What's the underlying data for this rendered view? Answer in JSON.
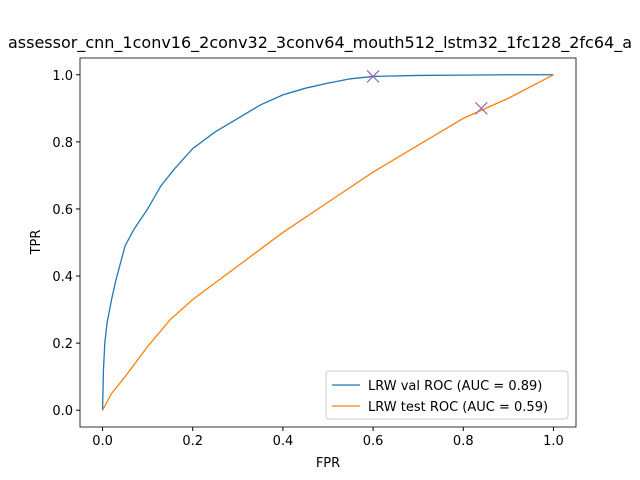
{
  "chart_data": {
    "type": "line",
    "title": "assessor_cnn_1conv16_2conv32_3conv64_mouth512_lstm32_1fc128_2fc64_a",
    "x_label": "FPR",
    "y_label": "TPR",
    "xlim": [
      -0.05,
      1.05
    ],
    "ylim": [
      -0.05,
      1.05
    ],
    "xticks": [
      {
        "value": 0,
        "label": "0.0"
      },
      {
        "value": 0.2,
        "label": "0.2"
      },
      {
        "value": 0.4,
        "label": "0.4"
      },
      {
        "value": 0.6,
        "label": "0.6"
      },
      {
        "value": 0.8,
        "label": "0.8"
      },
      {
        "value": 1,
        "label": "1.0"
      }
    ],
    "yticks": [
      {
        "value": 0,
        "label": "0.0"
      },
      {
        "value": 0.2,
        "label": "0.2"
      },
      {
        "value": 0.4,
        "label": "0.4"
      },
      {
        "value": 0.6,
        "label": "0.6"
      },
      {
        "value": 0.8,
        "label": "0.8"
      },
      {
        "value": 1,
        "label": "1.0"
      }
    ],
    "legend": "lower right",
    "series": [
      {
        "name": "LRW val ROC (AUC = 0.89)",
        "color": "#1f77b4",
        "x": [
          0,
          0.002,
          0.005,
          0.01,
          0.02,
          0.03,
          0.05,
          0.07,
          0.1,
          0.13,
          0.16,
          0.2,
          0.25,
          0.3,
          0.35,
          0.4,
          0.45,
          0.5,
          0.55,
          0.6,
          0.7,
          0.8,
          0.9,
          1.0
        ],
        "values": [
          0,
          0.12,
          0.2,
          0.26,
          0.33,
          0.39,
          0.49,
          0.54,
          0.6,
          0.67,
          0.72,
          0.78,
          0.83,
          0.87,
          0.91,
          0.94,
          0.96,
          0.975,
          0.988,
          0.995,
          0.998,
          0.999,
          1,
          1
        ]
      },
      {
        "name": "LRW test ROC (AUC = 0.59)",
        "color": "#ff7f0e",
        "x": [
          0,
          0.02,
          0.05,
          0.1,
          0.15,
          0.2,
          0.3,
          0.4,
          0.5,
          0.6,
          0.7,
          0.8,
          0.9,
          1.0
        ],
        "values": [
          0,
          0.05,
          0.1,
          0.19,
          0.27,
          0.33,
          0.43,
          0.53,
          0.62,
          0.71,
          0.79,
          0.87,
          0.93,
          1.0
        ]
      }
    ],
    "markers": {
      "color": "#9467bd",
      "x": [
        0.6,
        0.84
      ],
      "values": [
        0.995,
        0.9
      ]
    }
  }
}
